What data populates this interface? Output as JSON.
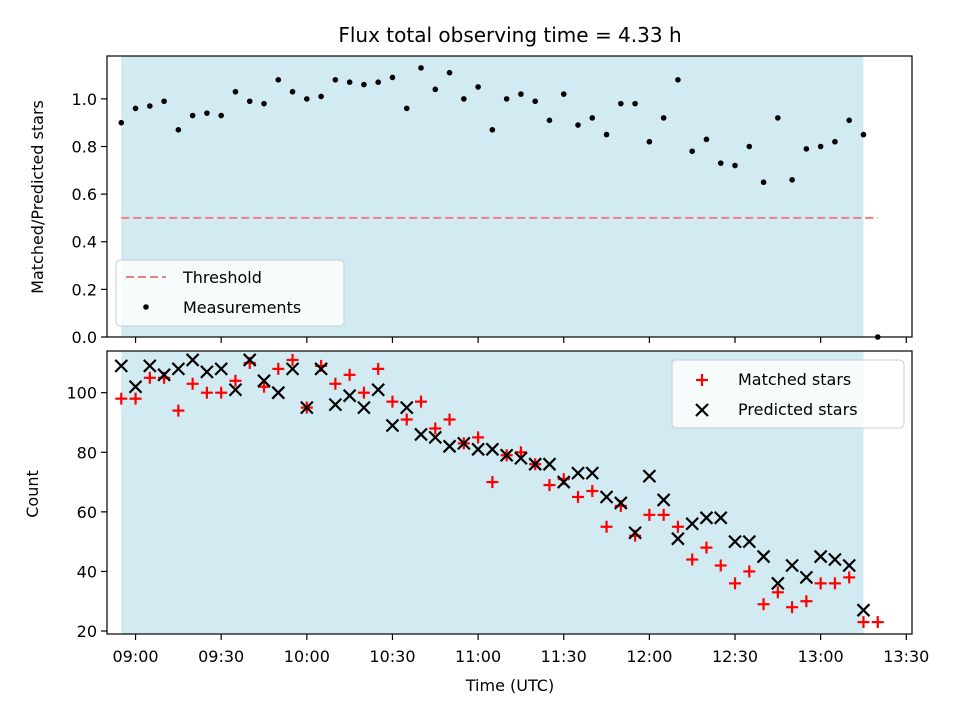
{
  "chart_data": [
    {
      "type": "scatter",
      "title": "Flux total observing time = 4.33 h",
      "xlabel": "",
      "ylabel": "Matched/Predicted stars",
      "ylim": [
        0,
        1.18
      ],
      "xlim": [
        "08:50",
        "13:32"
      ],
      "shaded_range": [
        "08:55",
        "13:15"
      ],
      "shade_color": "#add8e6",
      "yticks": [
        "0.0",
        "0.2",
        "0.4",
        "0.6",
        "0.8",
        "1.0"
      ],
      "threshold": {
        "name": "Threshold",
        "y": 0.5,
        "x_range": [
          "08:55",
          "13:20"
        ],
        "color": "#f08080"
      },
      "series": [
        {
          "name": "Measurements",
          "marker": "dot",
          "color": "#000000",
          "x": [
            "08:55",
            "09:00",
            "09:05",
            "09:10",
            "09:15",
            "09:20",
            "09:25",
            "09:30",
            "09:35",
            "09:40",
            "09:45",
            "09:50",
            "09:55",
            "10:00",
            "10:05",
            "10:10",
            "10:15",
            "10:20",
            "10:25",
            "10:30",
            "10:35",
            "10:40",
            "10:45",
            "10:50",
            "10:55",
            "11:00",
            "11:05",
            "11:10",
            "11:15",
            "11:20",
            "11:25",
            "11:30",
            "11:35",
            "11:40",
            "11:45",
            "11:50",
            "11:55",
            "12:00",
            "12:05",
            "12:10",
            "12:15",
            "12:20",
            "12:25",
            "12:30",
            "12:35",
            "12:40",
            "12:45",
            "12:50",
            "12:55",
            "13:00",
            "13:05",
            "13:10",
            "13:15",
            "13:20"
          ],
          "y": [
            0.9,
            0.96,
            0.97,
            0.99,
            0.87,
            0.93,
            0.94,
            0.93,
            1.03,
            0.99,
            0.98,
            1.08,
            1.03,
            1.0,
            1.01,
            1.08,
            1.07,
            1.06,
            1.07,
            1.09,
            0.96,
            1.13,
            1.04,
            1.11,
            1.0,
            1.05,
            0.87,
            1.0,
            1.02,
            0.99,
            0.91,
            1.02,
            0.89,
            0.92,
            0.85,
            0.98,
            0.98,
            0.82,
            0.92,
            1.08,
            0.78,
            0.83,
            0.73,
            0.72,
            0.8,
            0.65,
            0.92,
            0.66,
            0.79,
            0.8,
            0.82,
            0.91,
            0.85,
            0.0
          ]
        }
      ],
      "legend_placement": "lower-left"
    },
    {
      "type": "scatter",
      "title": "",
      "xlabel": "Time (UTC)",
      "ylabel": "Count",
      "ylim": [
        19,
        114
      ],
      "xlim": [
        "08:50",
        "13:32"
      ],
      "xticks": [
        "09:00",
        "09:30",
        "10:00",
        "10:30",
        "11:00",
        "11:30",
        "12:00",
        "12:30",
        "13:00",
        "13:30"
      ],
      "yticks": [
        "20",
        "40",
        "60",
        "80",
        "100"
      ],
      "series": [
        {
          "name": "Matched stars",
          "marker": "plus",
          "color": "#ff0000",
          "x": [
            "08:55",
            "09:00",
            "09:05",
            "09:10",
            "09:15",
            "09:20",
            "09:25",
            "09:30",
            "09:35",
            "09:40",
            "09:45",
            "09:50",
            "09:55",
            "10:00",
            "10:05",
            "10:10",
            "10:15",
            "10:20",
            "10:25",
            "10:30",
            "10:35",
            "10:40",
            "10:45",
            "10:50",
            "10:55",
            "11:00",
            "11:05",
            "11:10",
            "11:15",
            "11:20",
            "11:25",
            "11:30",
            "11:35",
            "11:40",
            "11:45",
            "11:50",
            "11:55",
            "12:00",
            "12:05",
            "12:10",
            "12:15",
            "12:20",
            "12:25",
            "12:30",
            "12:35",
            "12:40",
            "12:45",
            "12:50",
            "12:55",
            "13:00",
            "13:05",
            "13:10",
            "13:15",
            "13:20"
          ],
          "y": [
            98,
            98,
            105,
            105,
            94,
            103,
            100,
            100,
            104,
            110,
            102,
            108,
            111,
            95,
            109,
            103,
            106,
            100,
            108,
            97,
            91,
            97,
            88,
            91,
            83,
            85,
            70,
            79,
            80,
            76,
            69,
            71,
            65,
            67,
            55,
            62,
            52,
            59,
            59,
            55,
            44,
            48,
            42,
            36,
            40,
            29,
            33,
            28,
            30,
            36,
            36,
            38,
            23,
            23
          ]
        },
        {
          "name": "Predicted stars",
          "marker": "x",
          "color": "#000000",
          "x": [
            "08:55",
            "09:00",
            "09:05",
            "09:10",
            "09:15",
            "09:20",
            "09:25",
            "09:30",
            "09:35",
            "09:40",
            "09:45",
            "09:50",
            "09:55",
            "10:00",
            "10:05",
            "10:10",
            "10:15",
            "10:20",
            "10:25",
            "10:30",
            "10:35",
            "10:40",
            "10:45",
            "10:50",
            "10:55",
            "11:00",
            "11:05",
            "11:10",
            "11:15",
            "11:20",
            "11:25",
            "11:30",
            "11:35",
            "11:40",
            "11:45",
            "11:50",
            "11:55",
            "12:00",
            "12:05",
            "12:10",
            "12:15",
            "12:20",
            "12:25",
            "12:30",
            "12:35",
            "12:40",
            "12:45",
            "12:50",
            "12:55",
            "13:00",
            "13:05",
            "13:10",
            "13:15"
          ],
          "y": [
            109,
            102,
            109,
            106,
            108,
            111,
            107,
            108,
            101,
            111,
            104,
            100,
            108,
            95,
            108,
            96,
            99,
            95,
            101,
            89,
            95,
            86,
            85,
            82,
            83,
            81,
            81,
            79,
            78,
            76,
            76,
            70,
            73,
            73,
            65,
            63,
            53,
            72,
            64,
            51,
            56,
            58,
            58,
            50,
            50,
            45,
            36,
            42,
            38,
            45,
            44,
            42,
            27
          ]
        }
      ],
      "legend_placement": "upper-right"
    }
  ]
}
